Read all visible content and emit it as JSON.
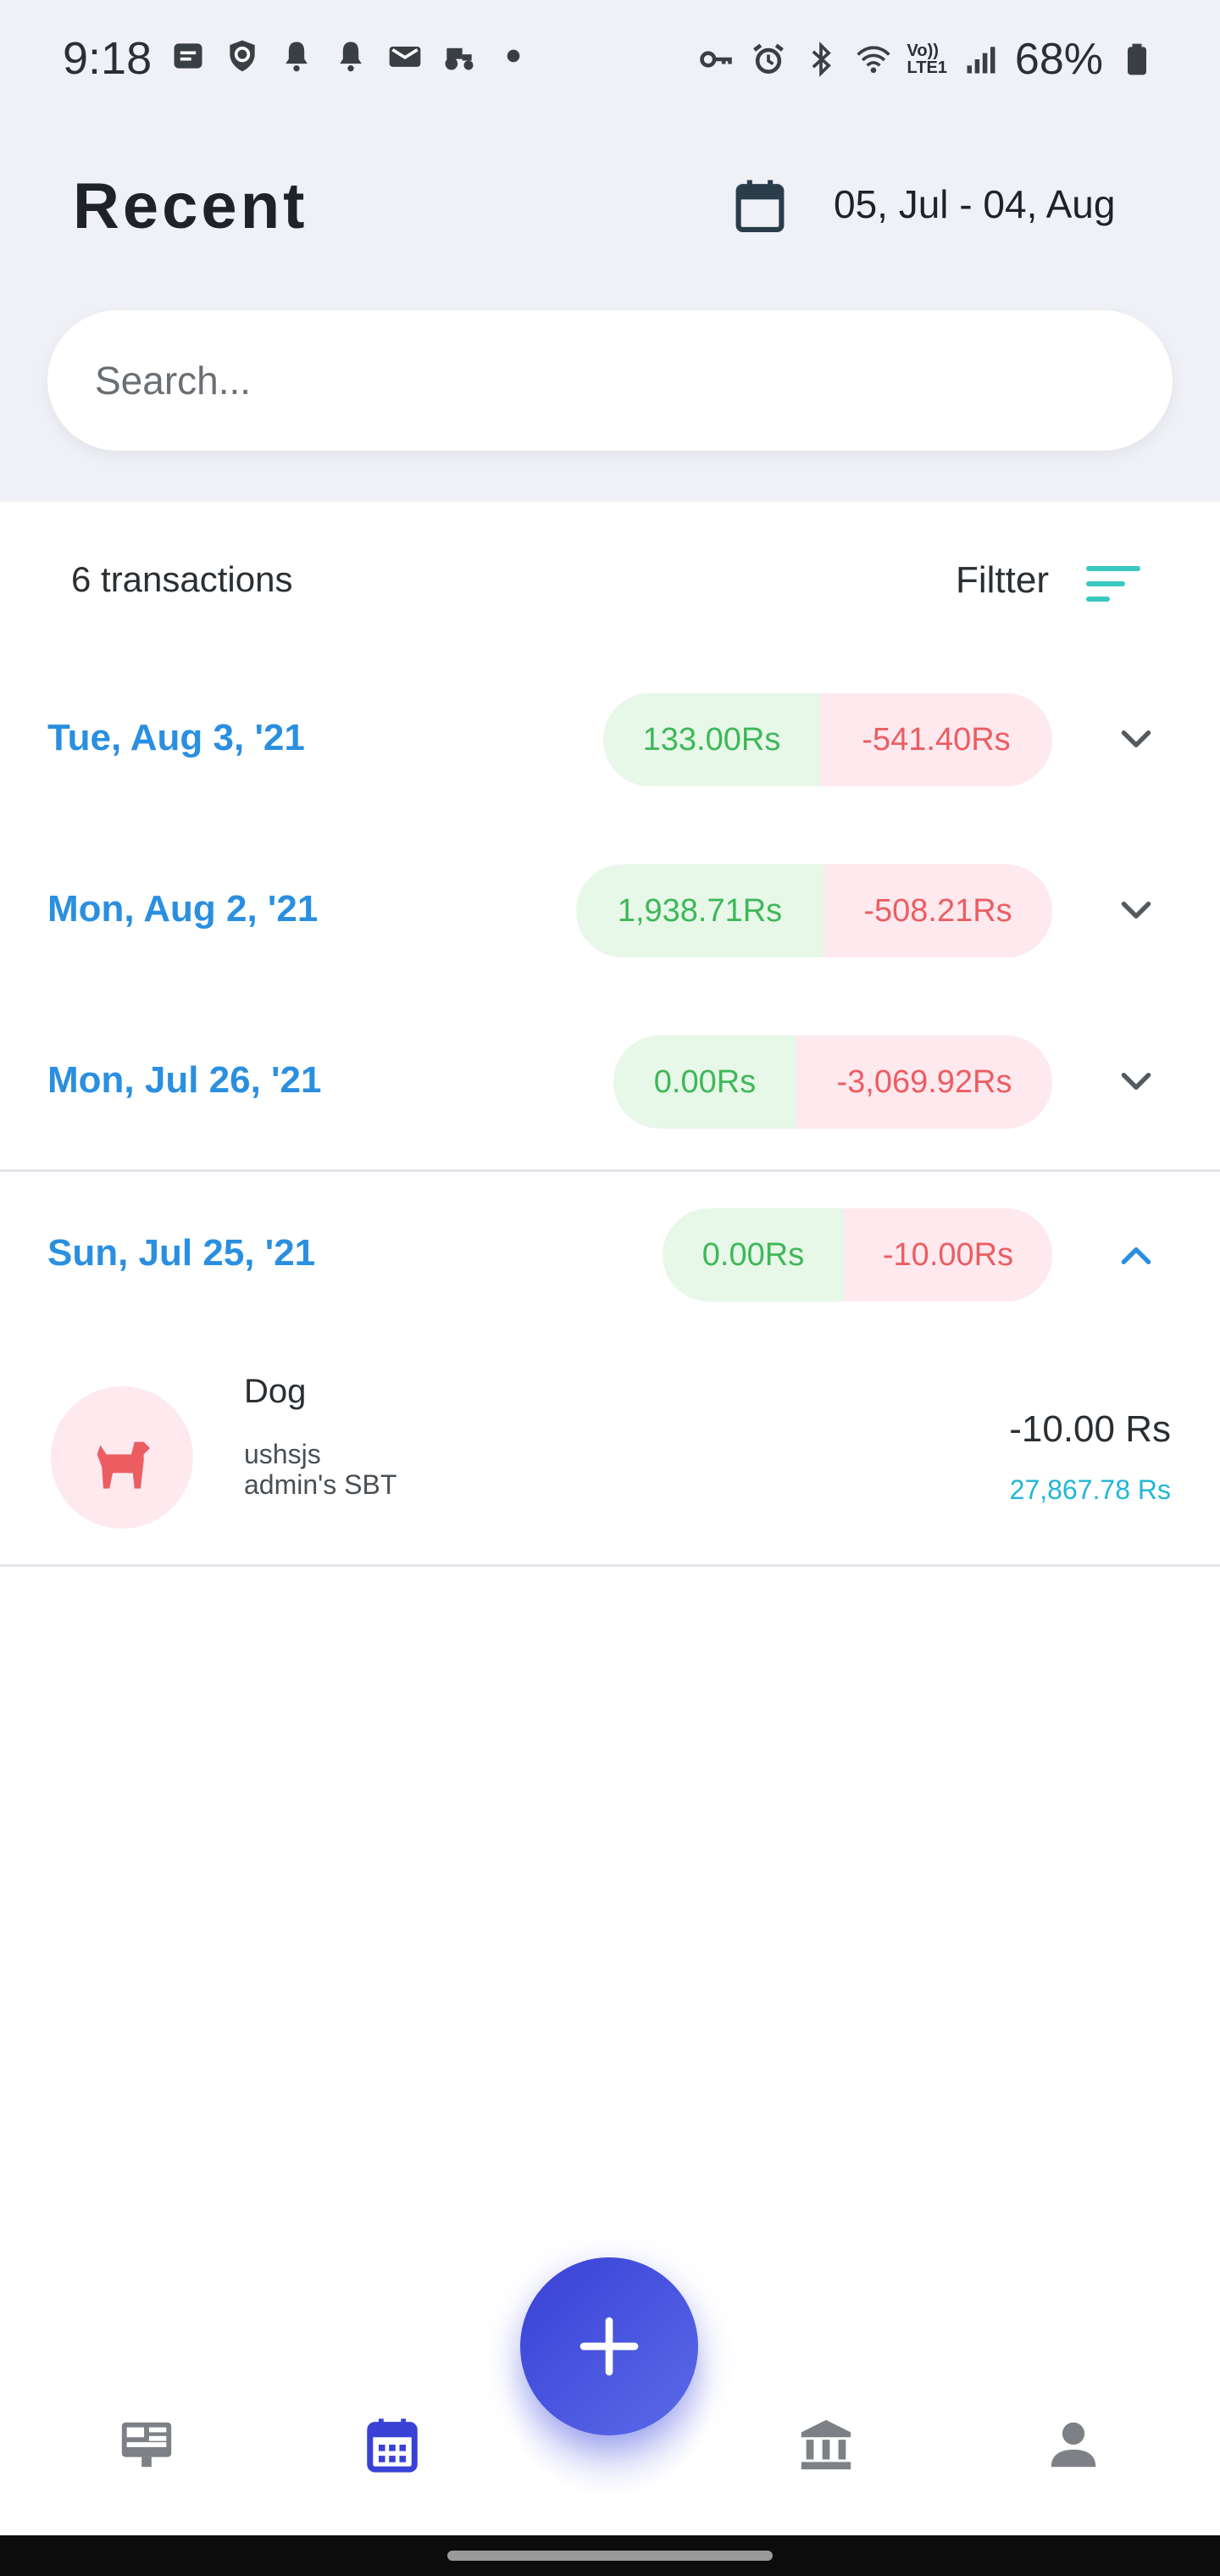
{
  "status_bar": {
    "time": "9:18",
    "battery": "68%",
    "lte_label": "LTE1",
    "volte_label": "Vo))"
  },
  "header": {
    "title": "Recent",
    "date_range": "05, Jul - 04, Aug"
  },
  "search": {
    "placeholder": "Search..."
  },
  "summary": {
    "count_label": "6 transactions",
    "filter_label": "Filtter"
  },
  "days": [
    {
      "date": "Tue, Aug 3, '21",
      "income": "133.00Rs",
      "expense": "-541.40Rs",
      "expanded": false
    },
    {
      "date": "Mon, Aug 2, '21",
      "income": "1,938.71Rs",
      "expense": "-508.21Rs",
      "expanded": false
    },
    {
      "date": "Mon, Jul 26, '21",
      "income": "0.00Rs",
      "expense": "-3,069.92Rs",
      "expanded": false
    },
    {
      "date": "Sun, Jul 25, '21",
      "income": "0.00Rs",
      "expense": "-10.00Rs",
      "expanded": true
    }
  ],
  "transaction": {
    "category": "Dog",
    "note": "ushsjs",
    "account": "admin's SBT",
    "amount": "-10.00 Rs",
    "balance": "27,867.78 Rs",
    "icon": "dog-icon"
  },
  "colors": {
    "date_blue": "#2a8fe0",
    "income_green": "#3eb859",
    "expense_red": "#ec5d62",
    "balance_cyan": "#22b6d6",
    "fab_blue": "#3941d6",
    "nav_active": "#3941d6"
  },
  "nav": {
    "items": [
      "dashboard-icon",
      "calendar-icon",
      "bank-icon",
      "person-icon"
    ],
    "active": "calendar-icon"
  }
}
